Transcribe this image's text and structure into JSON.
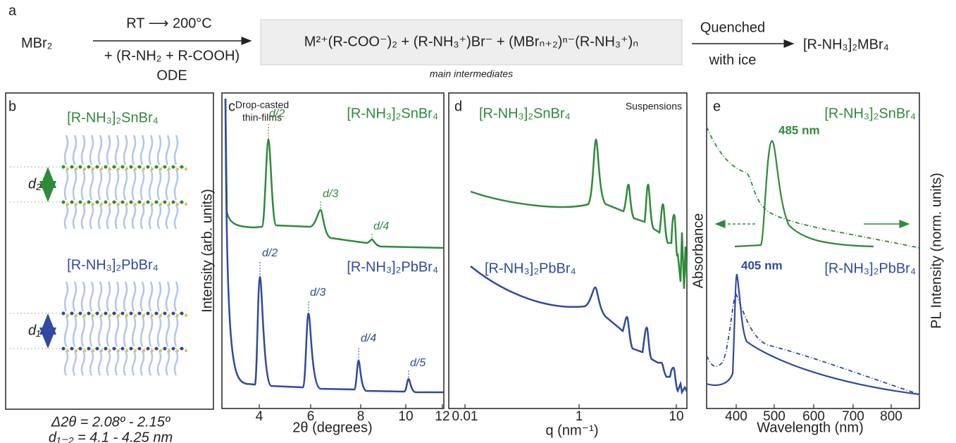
{
  "panel_a": {
    "label": "a",
    "reactant": "MBr₂",
    "conditions_above": "RT ⟶ 200°C",
    "conditions_below": "+ (R-NH₂ + R-COOH)",
    "solvent": "ODE",
    "intermediates": "M²⁺(R-COO⁻)₂ + (R-NH₃⁺)Br⁻ + (MBrₙ₊₂)ⁿ⁻(R-NH₃⁺)ₙ",
    "intermediates_caption": "main intermediates",
    "quench_above": "Quenched",
    "quench_below": "with ice",
    "product": "[R-NH₃]₂MBr₄"
  },
  "panel_b": {
    "label": "b",
    "top_compound": "[R-NH₃]₂SnBr₄",
    "top_spacing": "d₂",
    "bottom_compound": "[R-NH₃]₂PbBr₄",
    "bottom_spacing": "d₁",
    "caption": [
      "Δ2θ  = 2.08º - 2.15º",
      "d₁₋₂ = 4.1 - 4.25 nm"
    ]
  },
  "panel_c": {
    "label": "c",
    "annotation": [
      "Drop-casted",
      "thin-films"
    ],
    "y_label": "Intensity (arb. units)",
    "x_label": "2θ (degrees)",
    "x_ticks": [
      4,
      6,
      8,
      10,
      12
    ],
    "series": [
      {
        "name": "[R-NH₃]₂SnBr₄",
        "peaks": [
          "d/2",
          "d/3",
          "d/4"
        ]
      },
      {
        "name": "[R-NH₃]₂PbBr₄",
        "peaks": [
          "d/2",
          "d/3",
          "d/4",
          "d/5"
        ]
      }
    ]
  },
  "panel_d": {
    "label": "d",
    "annotation": "Suspensions",
    "x_label": "q (nm⁻¹)",
    "x_ticks": [
      0.01,
      1,
      10
    ],
    "series": [
      {
        "name": "[R-NH₃]₂SnBr₄"
      },
      {
        "name": "[R-NH₃]₂PbBr₄"
      }
    ]
  },
  "panel_e": {
    "label": "e",
    "y_label": "Absorbance",
    "y2_label": "PL Intensity (norm. units)",
    "x_label": "Wavelength (nm)",
    "x_ticks": [
      400,
      500,
      600,
      700,
      800
    ],
    "series": [
      {
        "name": "[R-NH₃]₂SnBr₄",
        "peak": "485 nm"
      },
      {
        "name": "[R-NH₃]₂PbBr₄",
        "peak": "405 nm"
      }
    ]
  }
}
